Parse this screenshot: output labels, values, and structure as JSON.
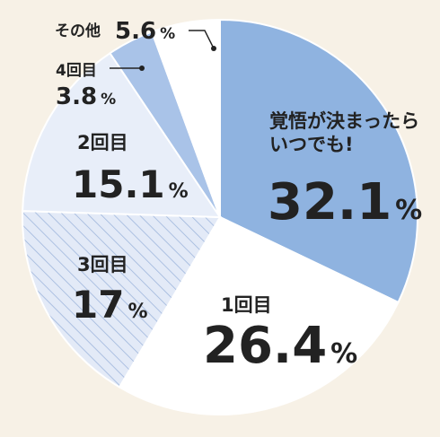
{
  "chart_data": {
    "type": "pie",
    "slices": [
      {
        "label": "覚悟が決まったら\nいつでも!",
        "value": 32.1,
        "value_text": "32.1",
        "color": "#8fb3e0",
        "pattern": "solid"
      },
      {
        "label": "1回目",
        "value": 26.4,
        "value_text": "26.4",
        "color": "#ffffff",
        "pattern": "solid"
      },
      {
        "label": "3回目",
        "value": 17,
        "value_text": "17",
        "color": "#dfe7f6",
        "pattern": "hatch"
      },
      {
        "label": "2回目",
        "value": 15.1,
        "value_text": "15.1",
        "color": "#e8eef9",
        "pattern": "solid"
      },
      {
        "label": "4回目",
        "value": 3.8,
        "value_text": "3.8",
        "color": "#a9c3e8",
        "pattern": "solid"
      },
      {
        "label": "その他",
        "value": 5.6,
        "value_text": "5.6",
        "color": "#ffffff",
        "pattern": "solid"
      }
    ],
    "unit": "%",
    "start_angle_deg": 0,
    "direction": "clockwise",
    "background": "#f7f1e6",
    "outline_color": "#ffffff"
  }
}
